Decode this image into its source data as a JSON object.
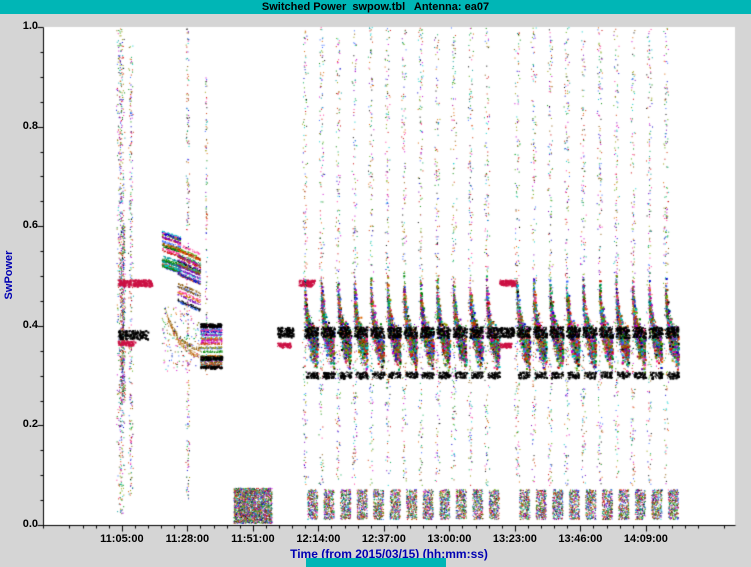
{
  "window": {
    "bg": "#d5d5d5"
  },
  "title_bar": {
    "text": "Switched Power  swpow.tbl   Antenna: ea07",
    "bg": "#00b6b6"
  },
  "footer": {
    "bar_color": "#00b6b6"
  },
  "chart_data": {
    "type": "scatter",
    "title": "Switched Power swpow.tbl Antenna: ea07",
    "xlabel": "Time (from 2015/03/15) (hh:mm:ss)",
    "ylabel": "SwPower",
    "ylim": [
      0.0,
      1.0
    ],
    "y_ticks": [
      "0.0",
      "0.2",
      "0.4",
      "0.6",
      "0.8",
      "1.0"
    ],
    "x_ticks": [
      {
        "label": "11:05:00",
        "t": 0
      },
      {
        "label": "11:28:00",
        "t": 23
      },
      {
        "label": "11:51:00",
        "t": 46
      },
      {
        "label": "12:14:00",
        "t": 69
      },
      {
        "label": "12:37:00",
        "t": 92
      },
      {
        "label": "13:00:00",
        "t": 115
      },
      {
        "label": "13:23:00",
        "t": 138
      },
      {
        "label": "13:46:00",
        "t": 161
      },
      {
        "label": "14:09:00",
        "t": 184
      }
    ],
    "t_range": [
      -27.7,
      215.3
    ],
    "x_minor_step": 4.6,
    "y_minor_step": 0.05,
    "grid": false,
    "legend": false,
    "accent_crimson": "#cc1144",
    "palette": [
      "#000000",
      "#cc0000",
      "#008800",
      "#0000cc",
      "#cc00cc",
      "#009999",
      "#dd6600",
      "#7700bb",
      "#885500",
      "#999900",
      "#ff3399",
      "#00aa55",
      "#3366ff",
      "#cc3300",
      "#00cccc",
      "#55aa00"
    ],
    "clusters": [
      {
        "kind": "vstripe",
        "t": -0.5,
        "spread": 1.6,
        "y0": 0.02,
        "y1": 1.0,
        "n": 650
      },
      {
        "kind": "vstripe",
        "t": 0.2,
        "spread": 1.0,
        "y0": 0.25,
        "y1": 0.6,
        "n": 450
      },
      {
        "kind": "vstripe",
        "t": 3.0,
        "spread": 0.9,
        "y0": 0.05,
        "y1": 0.97,
        "n": 300
      },
      {
        "kind": "hdash",
        "t0": -1.5,
        "t1": 10.5,
        "y": 0.487,
        "th": 0.013,
        "n": 260,
        "color": "crimson"
      },
      {
        "kind": "hdash",
        "t0": -1.5,
        "t1": 9.0,
        "y": 0.383,
        "th": 0.018,
        "n": 200,
        "color": "#000000"
      },
      {
        "kind": "hdash",
        "t0": -1.5,
        "t1": 4.5,
        "y": 0.366,
        "th": 0.009,
        "n": 90,
        "color": "crimson"
      },
      {
        "kind": "hlines",
        "t0": 14.0,
        "t1": 20.5,
        "y0": 0.515,
        "y1": 0.592,
        "lines": 26,
        "per": 40,
        "slope": -0.012
      },
      {
        "kind": "hlines",
        "t0": 19.5,
        "t1": 27.5,
        "y0": 0.445,
        "y1": 0.568,
        "lines": 34,
        "per": 40,
        "slope": -0.02
      },
      {
        "kind": "curve",
        "t0": 15.0,
        "t1": 27.0,
        "ya": 0.435,
        "yb": 0.332,
        "color": "#c07820",
        "n": 130,
        "spread": 0.005
      },
      {
        "kind": "curve",
        "t0": 16.0,
        "t1": 27.5,
        "ya": 0.42,
        "yb": 0.348,
        "color": "#8a5a00",
        "n": 100,
        "spread": 0.004
      },
      {
        "kind": "rect",
        "t0": 14.0,
        "t1": 27.0,
        "y0": 0.31,
        "y1": 0.44,
        "n": 160
      },
      {
        "kind": "vstripe",
        "t": 23.0,
        "spread": 0.7,
        "y0": 0.05,
        "y1": 1.0,
        "n": 240
      },
      {
        "kind": "hlines",
        "t0": 27.5,
        "t1": 35.0,
        "y0": 0.318,
        "y1": 0.4,
        "lines": 28,
        "per": 42,
        "slope": 0
      },
      {
        "kind": "hdash",
        "t0": 27.5,
        "t1": 35.0,
        "y": 0.402,
        "th": 0.007,
        "n": 150,
        "color": "#000000"
      },
      {
        "kind": "hdash",
        "t0": 27.5,
        "t1": 35.0,
        "y": 0.336,
        "th": 0.007,
        "n": 120,
        "color": "#000000"
      },
      {
        "kind": "hdash",
        "t0": 27.5,
        "t1": 35.0,
        "y": 0.318,
        "th": 0.006,
        "n": 80,
        "color": "#000000"
      },
      {
        "kind": "vstripe",
        "t": 29.5,
        "spread": 0.5,
        "y0": 0.3,
        "y1": 0.93,
        "n": 110
      },
      {
        "kind": "rect",
        "t0": 39.2,
        "t1": 52.6,
        "y0": 0.004,
        "y1": 0.075,
        "n": 2200
      },
      {
        "kind": "hdash",
        "t0": 54.5,
        "t1": 60.0,
        "y": 0.388,
        "th": 0.02,
        "n": 160,
        "color": "#000000"
      },
      {
        "kind": "hdash",
        "t0": 54.5,
        "t1": 59.0,
        "y": 0.362,
        "th": 0.009,
        "n": 90,
        "color": "crimson"
      },
      {
        "kind": "hdash",
        "t0": 62.0,
        "t1": 67.5,
        "y": 0.487,
        "th": 0.012,
        "n": 170,
        "color": "crimson"
      },
      {
        "kind": "hdash",
        "t0": 132.5,
        "t1": 138.5,
        "y": 0.487,
        "th": 0.012,
        "n": 170,
        "color": "crimson"
      },
      {
        "kind": "hdash",
        "t0": 132.5,
        "t1": 137.5,
        "y": 0.388,
        "th": 0.02,
        "n": 150,
        "color": "#000000"
      },
      {
        "kind": "hdash",
        "t0": 132.5,
        "t1": 136.5,
        "y": 0.362,
        "th": 0.009,
        "n": 80,
        "color": "crimson"
      }
    ],
    "scan_groups": [
      {
        "start": 64.2,
        "step": 5.8,
        "count": 12
      },
      {
        "start": 138.7,
        "step": 5.8,
        "count": 10
      }
    ],
    "scan_shape": {
      "stripe": {
        "spread": 1.1,
        "y0": 0.08,
        "y1": 1.0,
        "n": 190
      },
      "band": {
        "dt": 4.6,
        "base": 0.345,
        "amp": 0.125,
        "tau": 1.5,
        "jitter": 0.036,
        "n": 720
      },
      "marks": [
        {
          "y": 0.388,
          "th": 0.022,
          "n": 120,
          "dt0": -0.2,
          "dt1": 4.5
        },
        {
          "y": 0.302,
          "th": 0.013,
          "n": 75,
          "dt0": 0.3,
          "dt1": 4.5
        }
      ],
      "blob": {
        "y0": 0.012,
        "y1": 0.072,
        "n": 290,
        "dt0": 0.8,
        "dt1": 4.4
      }
    }
  }
}
